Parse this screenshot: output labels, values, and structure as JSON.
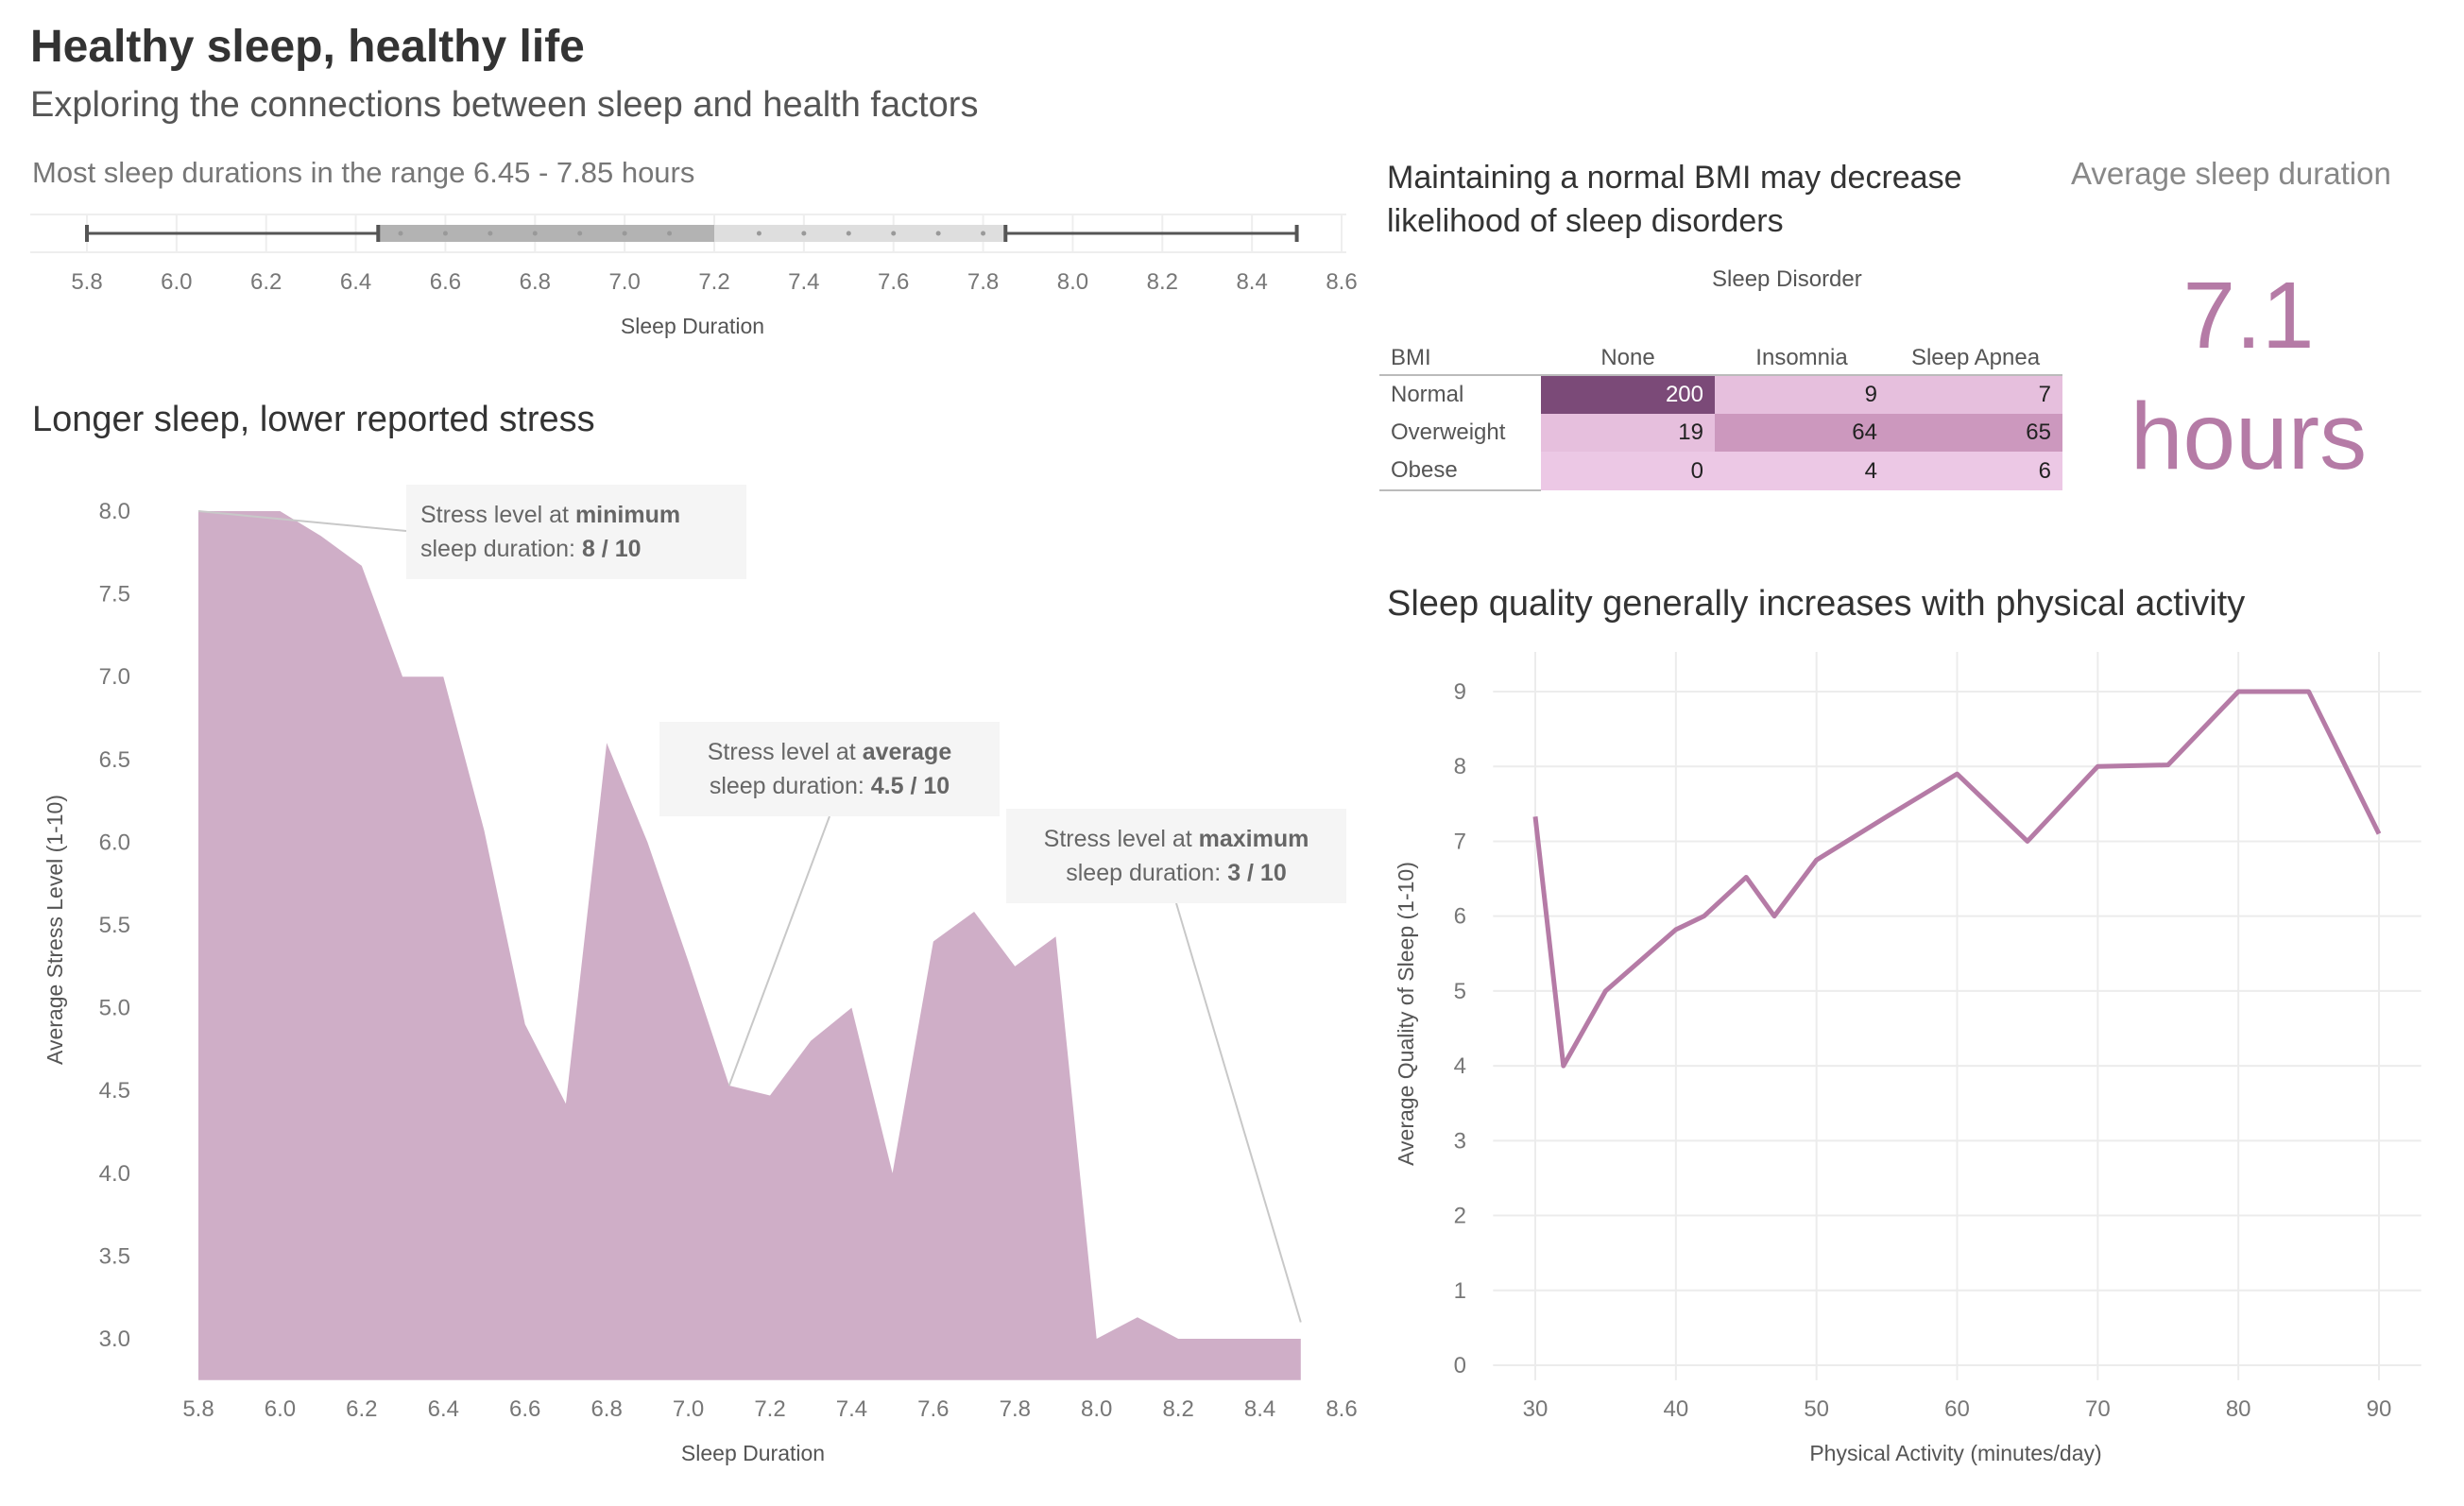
{
  "header": {
    "title": "Healthy sleep, healthy life",
    "subtitle": "Exploring the connections between sleep and health factors"
  },
  "range_section": {
    "title": "Most sleep durations in the range 6.45 - 7.85 hours"
  },
  "stress_section": {
    "title": "Longer sleep, lower reported stress",
    "annotations": [
      {
        "line1_prefix": "Stress level at ",
        "line1_bold": "minimum",
        "line2_prefix": "sleep duration: ",
        "line2_bold": "8 / 10"
      },
      {
        "line1_prefix": "Stress level at ",
        "line1_bold": "average",
        "line2_prefix": "sleep duration: ",
        "line2_bold": "4.5 / 10"
      },
      {
        "line1_prefix": "Stress level at ",
        "line1_bold": "maximum",
        "line2_prefix": "sleep duration: ",
        "line2_bold": "3 / 10"
      }
    ]
  },
  "bmi_section": {
    "title_line1": "Maintaining a normal BMI may decrease",
    "title_line2": "likelihood of sleep disorders",
    "column_group": "Sleep Disorder",
    "row_header": "BMI",
    "columns": [
      "None",
      "Insomnia",
      "Sleep Apnea"
    ],
    "rows": [
      {
        "label": "Normal",
        "values": [
          "200",
          "9",
          "7"
        ]
      },
      {
        "label": "Overweight",
        "values": [
          "19",
          "64",
          "65"
        ]
      },
      {
        "label": "Obese",
        "values": [
          "0",
          "4",
          "6"
        ]
      }
    ]
  },
  "kpi": {
    "title": "Average sleep duration",
    "value": "7.1",
    "unit": "hours"
  },
  "activity_section": {
    "title": "Sleep quality generally increases with physical activity"
  },
  "colors": {
    "accent": "#b57ba6",
    "area_fill": "#cfaec7",
    "heat_dark": "#7b4a78",
    "heat_mid": "#cc98be",
    "heat_light": "#e6bfdd",
    "box_dark": "#b3b3b3",
    "box_light": "#dedede"
  },
  "chart_data": [
    {
      "type": "box",
      "name": "sleep-duration-range",
      "xlabel": "Sleep Duration",
      "xlim": [
        5.75,
        8.6
      ],
      "x_ticks": [
        "5.8",
        "6.0",
        "6.2",
        "6.4",
        "6.6",
        "6.8",
        "7.0",
        "7.2",
        "7.4",
        "7.6",
        "7.8",
        "8.0",
        "8.2",
        "8.4",
        "8.6"
      ],
      "whisker_low": 5.8,
      "q1": 6.45,
      "median": 7.2,
      "q3": 7.85,
      "whisker_high": 8.5,
      "points": [
        6.5,
        6.6,
        6.7,
        6.8,
        6.9,
        7.0,
        7.1,
        7.3,
        7.4,
        7.5,
        7.6,
        7.7,
        7.8
      ]
    },
    {
      "type": "area",
      "name": "stress-vs-sleep",
      "xlabel": "Sleep Duration",
      "ylabel": "Average Stress Level (1-10)",
      "xlim": [
        5.8,
        8.6
      ],
      "ylim": [
        2.75,
        8.1
      ],
      "x_ticks": [
        "5.8",
        "6.0",
        "6.2",
        "6.4",
        "6.6",
        "6.8",
        "7.0",
        "7.2",
        "7.4",
        "7.6",
        "7.8",
        "8.0",
        "8.2",
        "8.4",
        "8.6"
      ],
      "y_ticks": [
        "3.0",
        "3.5",
        "4.0",
        "4.5",
        "5.0",
        "5.5",
        "6.0",
        "6.5",
        "7.0",
        "7.5",
        "8.0"
      ],
      "x": [
        5.8,
        5.9,
        6.0,
        6.1,
        6.2,
        6.3,
        6.4,
        6.5,
        6.6,
        6.7,
        6.8,
        6.9,
        7.0,
        7.1,
        7.2,
        7.3,
        7.4,
        7.5,
        7.6,
        7.7,
        7.8,
        7.9,
        8.0,
        8.1,
        8.2,
        8.3,
        8.4,
        8.5
      ],
      "y": [
        8.0,
        8.0,
        8.0,
        7.85,
        7.67,
        7.0,
        7.0,
        6.07,
        4.9,
        4.42,
        6.6,
        6.0,
        5.28,
        4.53,
        4.47,
        4.8,
        5.0,
        4.0,
        5.4,
        5.58,
        5.25,
        5.43,
        3.0,
        3.13,
        3.0,
        3.0,
        3.0,
        3.0
      ]
    },
    {
      "type": "line",
      "name": "quality-vs-activity",
      "xlabel": "Physical Activity (minutes/day)",
      "ylabel": "Average Quality of Sleep (1-10)",
      "xlim": [
        27,
        93
      ],
      "ylim": [
        0,
        9.6
      ],
      "x_ticks": [
        "30",
        "40",
        "50",
        "60",
        "70",
        "80",
        "90"
      ],
      "y_ticks": [
        "0",
        "1",
        "2",
        "3",
        "4",
        "5",
        "6",
        "7",
        "8",
        "9"
      ],
      "x": [
        30,
        32,
        35,
        40,
        42,
        45,
        47,
        50,
        55,
        60,
        65,
        70,
        75,
        80,
        85,
        90
      ],
      "y": [
        7.33,
        4.0,
        5.0,
        5.82,
        6.0,
        6.52,
        6.0,
        6.75,
        7.33,
        7.9,
        7.0,
        8.0,
        8.02,
        9.0,
        9.0,
        7.1
      ]
    }
  ]
}
